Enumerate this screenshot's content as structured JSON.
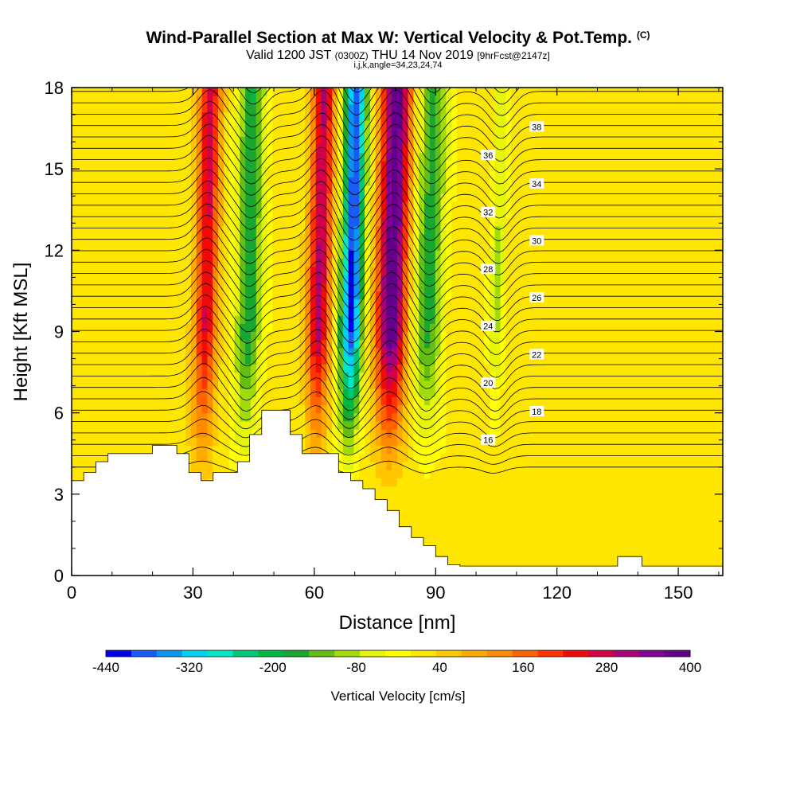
{
  "header": {
    "title": "Wind-Parallel Section at Max W: Vertical Velocity & Pot.Temp.",
    "copyright": "(C)",
    "valid_prefix": "Valid 1200 JST",
    "utc": "(0300Z)",
    "valid_date": "THU 14 Nov 2019",
    "forecast": "[9hrFcst@2147z]",
    "section_params": "i,j,k,angle=34,23,24,74"
  },
  "chart_data": {
    "type": "heatmap",
    "xlabel": "Distance [nm]",
    "ylabel": "Height [Kft MSL]",
    "xlim": [
      0,
      161
    ],
    "ylim": [
      0,
      18
    ],
    "x_ticks": [
      0,
      30,
      60,
      90,
      120,
      150
    ],
    "y_ticks": [
      0,
      3,
      6,
      9,
      12,
      15,
      18
    ],
    "colorbar": {
      "label": "Vertical Velocity [cm/s]",
      "range": [
        -440,
        400
      ],
      "tick_labels": [
        "-440",
        "-320",
        "-200",
        "-80",
        "40",
        "160",
        "280",
        "400"
      ],
      "colors": [
        "#0000e8",
        "#1a5af5",
        "#0a96f0",
        "#00d2f5",
        "#00e8c8",
        "#00c878",
        "#00b846",
        "#18a832",
        "#64be14",
        "#a0dc0a",
        "#e6f50a",
        "#ffff00",
        "#ffe600",
        "#ffc800",
        "#ffaa00",
        "#ff8c00",
        "#ff6400",
        "#ff3200",
        "#f00a0a",
        "#d2004b",
        "#aa0078",
        "#820096",
        "#64008c"
      ]
    },
    "vertical_velocity_bands": [
      {
        "x": [
          30,
          36
        ],
        "peak_w": 250,
        "sign": "updraft"
      },
      {
        "x": [
          40,
          47
        ],
        "peak_w": -200,
        "sign": "downdraft"
      },
      {
        "x": [
          58,
          64
        ],
        "peak_w": 280,
        "sign": "updraft"
      },
      {
        "x": [
          66,
          72
        ],
        "peak_w": -420,
        "sign": "downdraft"
      },
      {
        "x": [
          75,
          83
        ],
        "peak_w": 380,
        "sign": "updraft"
      },
      {
        "x": [
          84,
          92
        ],
        "peak_w": -180,
        "sign": "downdraft"
      },
      {
        "x": [
          103,
          107
        ],
        "peak_w": -90,
        "sign": "downdraft"
      }
    ],
    "terrain": [
      [
        0,
        3.5
      ],
      [
        3,
        3.5
      ],
      [
        3,
        3.8
      ],
      [
        6,
        3.8
      ],
      [
        6,
        4.2
      ],
      [
        9,
        4.2
      ],
      [
        9,
        4.5
      ],
      [
        20,
        4.5
      ],
      [
        20,
        4.8
      ],
      [
        26,
        4.8
      ],
      [
        26,
        4.5
      ],
      [
        29,
        4.5
      ],
      [
        29,
        3.8
      ],
      [
        32,
        3.8
      ],
      [
        32,
        3.5
      ],
      [
        35,
        3.5
      ],
      [
        35,
        3.8
      ],
      [
        41,
        3.8
      ],
      [
        41,
        4.2
      ],
      [
        44,
        4.2
      ],
      [
        44,
        5.2
      ],
      [
        47,
        5.2
      ],
      [
        47,
        6.1
      ],
      [
        54,
        6.1
      ],
      [
        54,
        5.2
      ],
      [
        57,
        5.2
      ],
      [
        57,
        4.5
      ],
      [
        66,
        4.5
      ],
      [
        66,
        3.8
      ],
      [
        69,
        3.8
      ],
      [
        69,
        3.5
      ],
      [
        72,
        3.5
      ],
      [
        72,
        3.2
      ],
      [
        75,
        3.2
      ],
      [
        75,
        2.8
      ],
      [
        78,
        2.8
      ],
      [
        78,
        2.4
      ],
      [
        81,
        2.4
      ],
      [
        81,
        1.8
      ],
      [
        84,
        1.8
      ],
      [
        84,
        1.4
      ],
      [
        87,
        1.4
      ],
      [
        87,
        1.1
      ],
      [
        90,
        1.1
      ],
      [
        90,
        0.7
      ],
      [
        93,
        0.7
      ],
      [
        93,
        0.4
      ],
      [
        96,
        0.4
      ],
      [
        96,
        0.35
      ],
      [
        135,
        0.35
      ],
      [
        135,
        0.7
      ],
      [
        141,
        0.7
      ],
      [
        141,
        0.35
      ],
      [
        161,
        0.35
      ]
    ],
    "theta_contour_labels": [
      "16",
      "18",
      "20",
      "22",
      "24",
      "26",
      "28",
      "30",
      "32",
      "34",
      "36",
      "38"
    ]
  }
}
